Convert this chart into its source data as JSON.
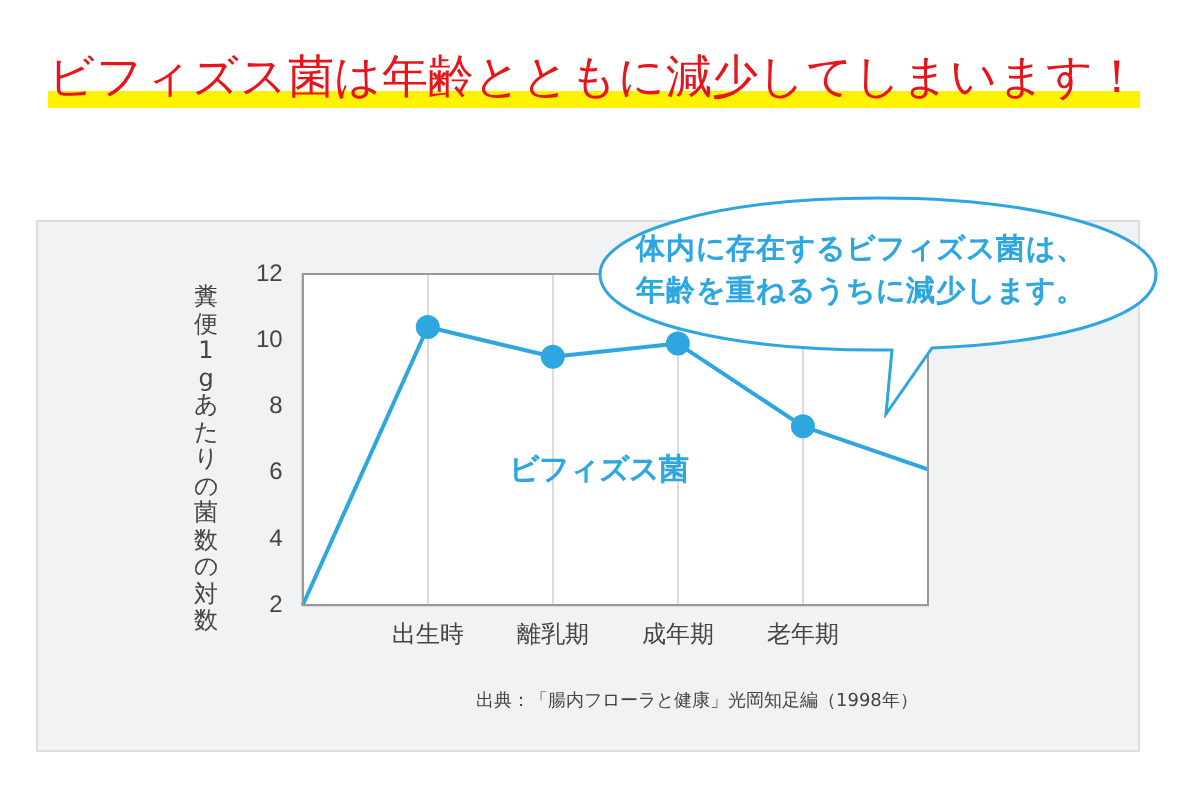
{
  "chart_data": {
    "type": "line",
    "title": "ビフィズス菌は年齢とともに減少してしまいます！",
    "ylabel": "糞便1gあたりの菌数の対数",
    "categories": [
      null,
      "出生時",
      "離乳期",
      "成年期",
      "老年期",
      null
    ],
    "series": [
      {
        "name": "ビフィズス菌",
        "color": "#2ea7e0",
        "values": [
          2,
          10.4,
          9.5,
          9.9,
          7.4,
          6.1
        ]
      }
    ],
    "ylim": [
      2,
      12
    ],
    "yticks": [
      2,
      4,
      6,
      8,
      10,
      12
    ],
    "grid": "x",
    "legend": false,
    "marker": "circle",
    "line_style": "solid",
    "annotations": [
      "体内に存在するビフィズス菌は、年齢を重ねるうちに減少します。",
      "出典：「腸内フローラと健康」光岡知足編（1998年）"
    ]
  }
}
